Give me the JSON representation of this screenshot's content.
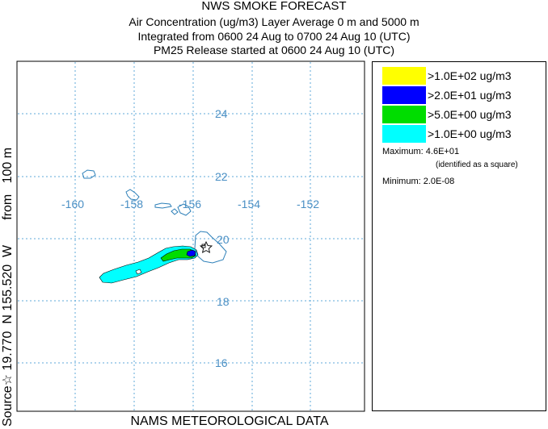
{
  "title": "NWS SMOKE FORECAST",
  "subtitle_lines": [
    "Air Concentration (ug/m3) Layer Average    0 m and  5000 m",
    "Integrated from 0600 24 Aug to 0700 24 Aug 10 (UTC)",
    "PM25 Release started at 0600 24 Aug 10 (UTC)"
  ],
  "side_label": {
    "prefix": "Source",
    "star": "☆",
    "text": " 19.770  N 155.520  W       from   100 m"
  },
  "footer": "NAMS METEOROLOGICAL DATA",
  "map": {
    "longitude_labels": [
      "-160",
      "-158",
      "-156",
      "-154",
      "-152"
    ],
    "latitude_labels": [
      "24",
      "22",
      "20",
      "18",
      "16"
    ],
    "grid_color": "#5fa8d8",
    "label_color": "#4a8fc4",
    "source_marker": "star-icon"
  },
  "legend": {
    "entries": [
      {
        "label": ">1.0E+02 ug/m3",
        "color": "#ffff00"
      },
      {
        "label": ">2.0E+01 ug/m3",
        "color": "#0000ff"
      },
      {
        "label": ">5.0E+00 ug/m3",
        "color": "#00dd00"
      },
      {
        "label": ">1.0E+00 ug/m3",
        "color": "#00ffff"
      }
    ],
    "maximum_label": "Maximum: 4.6E+01",
    "maximum_note": "(identified as a square)",
    "minimum_label": "Minimum: 2.0E-08"
  }
}
